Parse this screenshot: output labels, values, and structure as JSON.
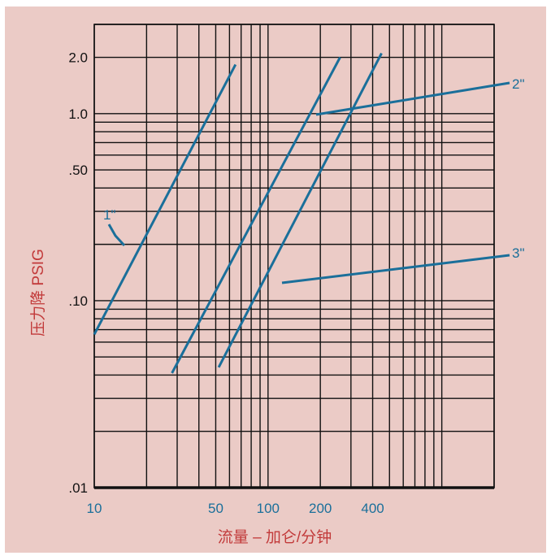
{
  "chart_data": {
    "type": "line",
    "title": "",
    "xlabel": "流量 – 加仑/分钟",
    "ylabel": "压力降 PSIG",
    "x_scale": "log",
    "y_scale": "log",
    "xlim": [
      10,
      2000
    ],
    "ylim": [
      0.01,
      3.0
    ],
    "x_tick_labels": [
      {
        "value": 10,
        "label": "10"
      },
      {
        "value": 50,
        "label": "50"
      },
      {
        "value": 100,
        "label": "100"
      },
      {
        "value": 200,
        "label": "200"
      },
      {
        "value": 400,
        "label": "400"
      }
    ],
    "y_tick_labels": [
      {
        "value": 0.01,
        "label": ".01"
      },
      {
        "value": 0.1,
        "label": ".10"
      },
      {
        "value": 0.5,
        "label": ".50"
      },
      {
        "value": 1.0,
        "label": "1.0"
      },
      {
        "value": 2.0,
        "label": "2.0"
      }
    ],
    "grid": true,
    "series": [
      {
        "name": "1\"",
        "x": [
          10,
          65
        ],
        "y": [
          0.066,
          1.83
        ]
      },
      {
        "name": "2\"",
        "x": [
          28,
          260
        ],
        "y": [
          0.041,
          2.0
        ]
      },
      {
        "name": "3\"",
        "x": [
          52,
          450
        ],
        "y": [
          0.044,
          2.1
        ]
      }
    ],
    "series_color": "#1a6f9a",
    "axis_title_color": "#c23a3a",
    "background_color": "#ebcbc6"
  }
}
